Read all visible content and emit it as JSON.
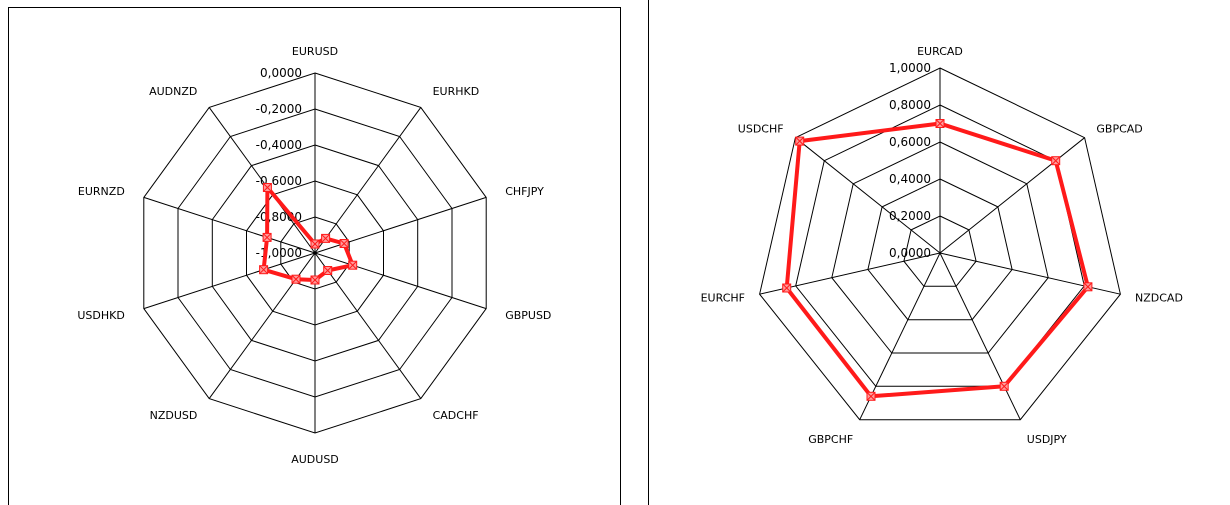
{
  "chart_data": [
    {
      "type": "radar",
      "categories": [
        "EURUSD",
        "EURHKD",
        "CHFJPY",
        "GBPUSD",
        "CADCHF",
        "AUDUSD",
        "NZDUSD",
        "USDHKD",
        "EURNZD",
        "AUDNZD"
      ],
      "values": [
        -0.95,
        -0.9,
        -0.83,
        -0.78,
        -0.88,
        -0.85,
        -0.82,
        -0.7,
        -0.72,
        -0.55
      ],
      "rlim": [
        -1.0,
        0.0
      ],
      "ticks": [
        "0,0000",
        "-0,2000",
        "-0,4000",
        "-0,6000",
        "-0,8000",
        "-1,0000"
      ],
      "grid": true,
      "series_color": "#ff1a1a"
    },
    {
      "type": "radar",
      "categories": [
        "EURCAD",
        "GBPCAD",
        "NZDCAD",
        "USDJPY",
        "GBPCHF",
        "EURCHF",
        "USDCHF"
      ],
      "values": [
        0.7,
        0.8,
        0.82,
        0.8,
        0.86,
        0.85,
        0.97
      ],
      "rlim": [
        0.0,
        1.0
      ],
      "ticks": [
        "1,0000",
        "0,8000",
        "0,6000",
        "0,4000",
        "0,2000",
        "0,0000"
      ],
      "grid": true,
      "series_color": "#ff1a1a"
    }
  ]
}
